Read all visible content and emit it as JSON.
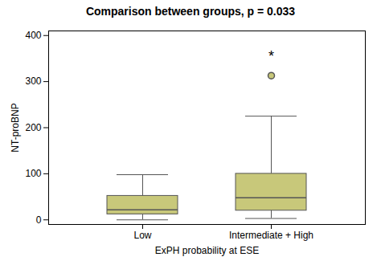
{
  "chart_data": {
    "type": "box",
    "title": "Comparison between groups,  p = 0.033",
    "xlabel": "ExPH probability at ESE",
    "ylabel": "NT-proBNP",
    "categories": [
      "Low",
      "Intermediate + High"
    ],
    "boxes": [
      {
        "q1": 12,
        "median": 22,
        "q3": 52,
        "whisker_low": 0,
        "whisker_high": 98,
        "outliers": []
      },
      {
        "q1": 20,
        "median": 48,
        "q3": 100,
        "whisker_low": 3,
        "whisker_high": 225,
        "outliers": [
          313
        ]
      }
    ],
    "color": "#c8c87a",
    "annotations": [
      {
        "text": "*",
        "x": "Intermediate + High",
        "y": 355
      }
    ],
    "ylim": [
      -10,
      410
    ],
    "yticks": [
      0,
      100,
      200,
      300,
      400
    ]
  }
}
